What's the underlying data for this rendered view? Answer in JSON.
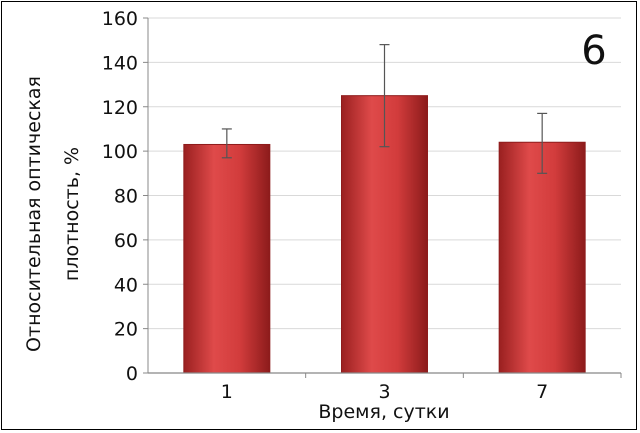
{
  "chart_data": {
    "type": "bar",
    "panel_label": "6",
    "categories": [
      "1",
      "3",
      "7"
    ],
    "values": [
      103,
      125,
      104
    ],
    "error": [
      {
        "low": 97,
        "high": 110
      },
      {
        "low": 102,
        "high": 148
      },
      {
        "low": 90,
        "high": 117
      }
    ],
    "xlabel": "Время, сутки",
    "ylabel_line1": "Относительная оптическая",
    "ylabel_line2": "плотность, %",
    "ylim": [
      0,
      160
    ],
    "yticks": [
      0,
      20,
      40,
      60,
      80,
      100,
      120,
      140,
      160
    ],
    "grid": true,
    "colors": {
      "bar": "#c83232",
      "bar_light": "#e05a5a",
      "bar_dark": "#8e1c1c",
      "grid": "#d9d9d9",
      "error": "#555555"
    }
  }
}
